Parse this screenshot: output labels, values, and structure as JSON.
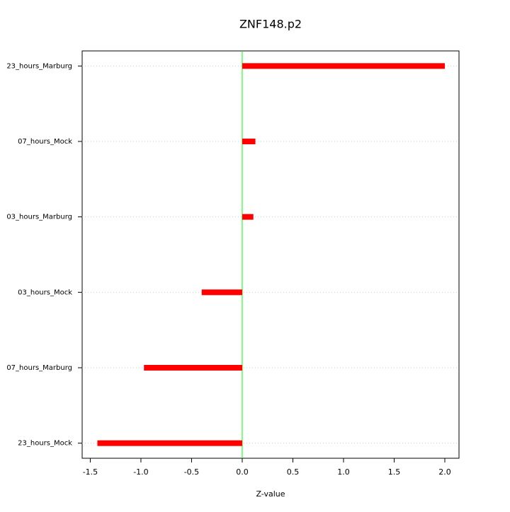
{
  "chart_data": {
    "type": "barh",
    "title": "ZNF148.p2",
    "x_label": "Z-value",
    "categories": [
      "23_hours_Marburg",
      "07_hours_Mock",
      "03_hours_Marburg",
      "03_hours_Mock",
      "07_hours_Marburg",
      "23_hours_Mock"
    ],
    "values": [
      2.0,
      0.13,
      0.11,
      -0.4,
      -0.97,
      -1.43
    ],
    "color": "#ff0000",
    "xlim": [
      -1.58,
      2.14
    ],
    "xticks": [
      -1.5,
      {
        "value": -1,
        "label": "-1.0"
      },
      -0.5,
      {
        "value": 0,
        "label": "0.0"
      },
      0.5,
      {
        "value": 1,
        "label": "1.0"
      },
      1.5,
      {
        "value": 2,
        "label": "2.0"
      }
    ],
    "reference_line": {
      "value": 0,
      "color": "#00ff00"
    },
    "grid": true
  }
}
